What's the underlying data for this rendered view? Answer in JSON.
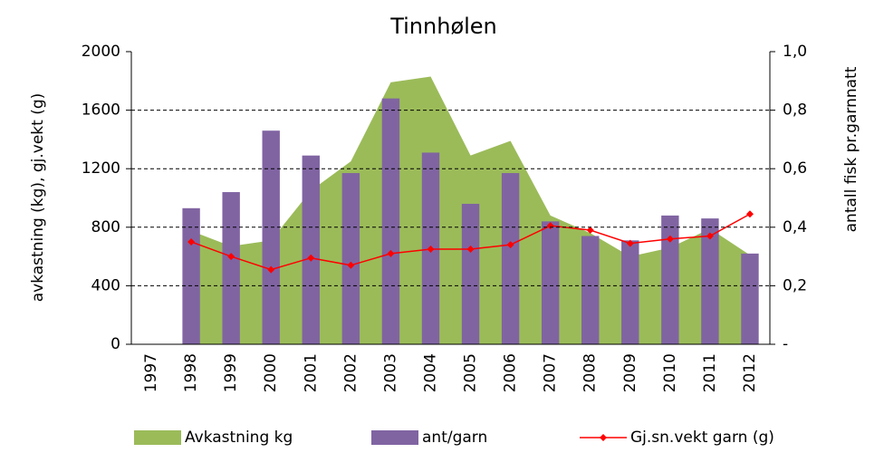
{
  "chart_data": {
    "type": "combo",
    "title": "Tinnhølen",
    "y_label": "avkastning (kg), gj.vekt (g)",
    "y2_label": "antall fisk pr.garnnatt",
    "categories": [
      "1997",
      "1998",
      "1999",
      "2000",
      "2001",
      "2002",
      "2003",
      "2004",
      "2005",
      "2006",
      "2007",
      "2008",
      "2009",
      "2010",
      "2011",
      "2012"
    ],
    "ylim": [
      0,
      2000
    ],
    "yticks": [
      0,
      400,
      800,
      1200,
      1600,
      2000
    ],
    "y2lim": [
      0,
      1
    ],
    "y2ticks": [
      {
        "value": 0,
        "label": "-"
      },
      {
        "value": 0.2,
        "label": "0,2"
      },
      {
        "value": 0.4,
        "label": "0,4"
      },
      {
        "value": 0.6,
        "label": "0,6"
      },
      {
        "value": 0.8,
        "label": "0,8"
      },
      {
        "value": 1,
        "label": "1,0"
      }
    ],
    "grid": true,
    "series": [
      {
        "name": "Avkastning kg",
        "type": "area",
        "color": "#9bbb59",
        "values": [
          null,
          775,
          670,
          710,
          1050,
          1250,
          1790,
          1830,
          1290,
          1390,
          880,
          760,
          600,
          660,
          790,
          610
        ]
      },
      {
        "name": "ant/garn",
        "type": "bar",
        "axis": "y2",
        "color": "#8064a2",
        "values": [
          null,
          0.465,
          0.52,
          0.73,
          0.645,
          0.585,
          0.84,
          0.655,
          0.48,
          0.585,
          0.42,
          0.37,
          0.355,
          0.44,
          0.43,
          0.31
        ]
      },
      {
        "name": "Gj.sn.vekt garn (g)",
        "type": "line",
        "color": "#ff0000",
        "values": [
          null,
          700,
          600,
          510,
          590,
          540,
          620,
          650,
          650,
          680,
          810,
          780,
          690,
          720,
          740,
          890
        ]
      }
    ]
  }
}
